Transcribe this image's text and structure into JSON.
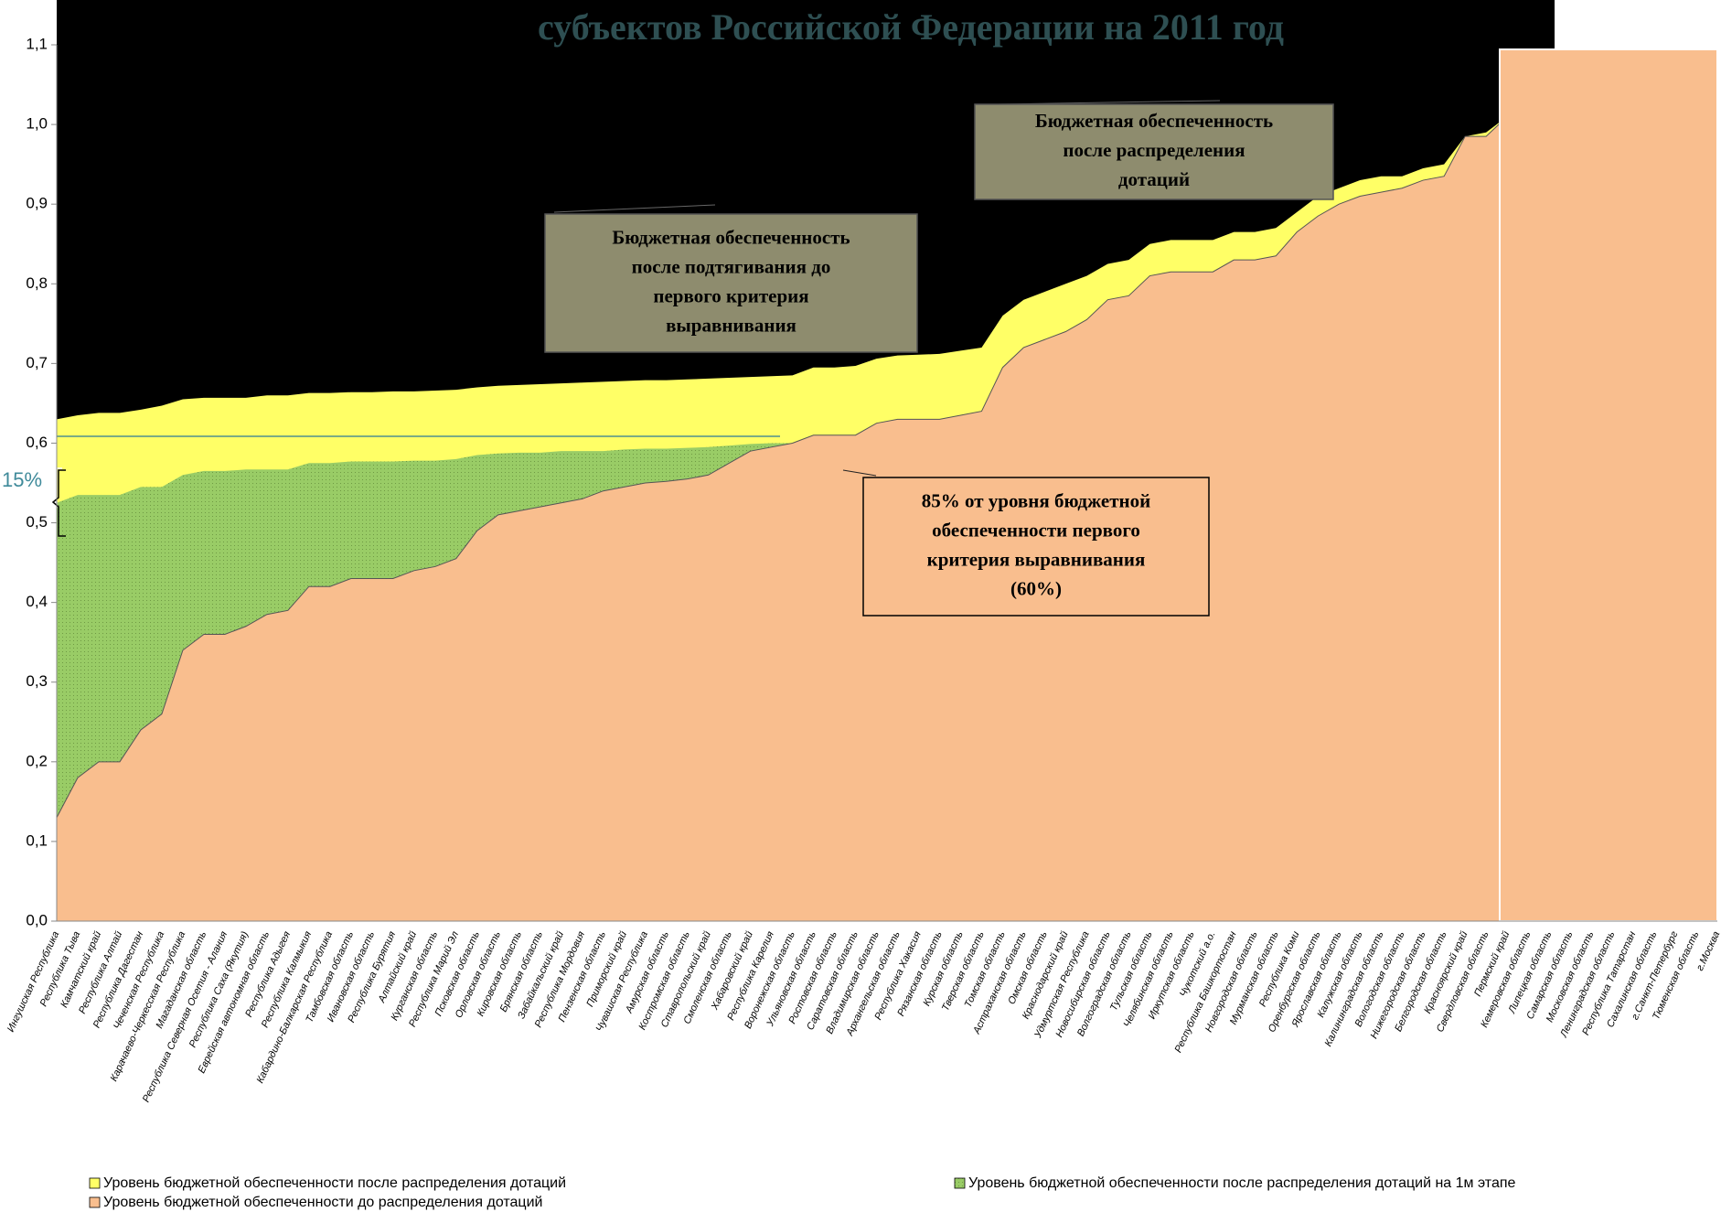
{
  "chart_data": {
    "type": "area",
    "title": "субъектов Российской Федерации на 2011 год",
    "categories": [
      "Ингушская Республика",
      "Республика Тыва",
      "Камчатский край",
      "Республика Алтай",
      "Республика Дагестан",
      "Чеченская Республика",
      "Карачаево-Черкесская Республика",
      "Магаданская область",
      "Республика Северная Осетия - Алания",
      "Республика Саха (Якутия)",
      "Еврейская автономная область",
      "Республика Адыгея",
      "Республика Калмыкия",
      "Кабардино-Балкарская Республика",
      "Тамбовская область",
      "Ивановская область",
      "Республика Бурятия",
      "Алтайский край",
      "Курганская область",
      "Республика Марий Эл",
      "Псковская область",
      "Орловская область",
      "Кировская область",
      "Брянская область",
      "Забайкальский край",
      "Республика Мордовия",
      "Пензенская область",
      "Приморский край",
      "Чувашская Республика",
      "Амурская область",
      "Костромская область",
      "Ставропольский край",
      "Смоленская область",
      "Хабаровский край",
      "Республика Карелия",
      "Воронежская область",
      "Ульяновская область",
      "Ростовская область",
      "Саратовская область",
      "Владимирская область",
      "Архангельская область",
      "Республика Хакасия",
      "Рязанская область",
      "Курская область",
      "Тверская область",
      "Томская область",
      "Астраханская область",
      "Омская область",
      "Краснодарский край",
      "Удмуртская Республика",
      "Новосибирская область",
      "Волгоградская область",
      "Тульская область",
      "Челябинская область",
      "Иркутская область",
      "Чукотский а.о.",
      "Республика Башкортостан",
      "Новгородская область",
      "Мурманская область",
      "Республика Коми",
      "Оренбургская область",
      "Ярославская область",
      "Калужская область",
      "Калининградская область",
      "Вологодская область",
      "Нижегородская область",
      "Белгородская область",
      "Красноярский край",
      "Свердловская область",
      "Пермский край",
      "Кемеровская область",
      "Липецкая область",
      "Самарская область",
      "Московская область",
      "Ленинградская область",
      "Республика Татарстан",
      "Сахалинская область",
      "г.Санкт-Петербург",
      "Тюменская область",
      "г.Москва"
    ],
    "series": [
      {
        "name": "Уровень бюджетной обеспеченности после распределения дотаций",
        "color": "#ffff66",
        "values": [
          0.63,
          0.635,
          0.638,
          0.638,
          0.642,
          0.647,
          0.655,
          0.657,
          0.657,
          0.657,
          0.66,
          0.66,
          0.663,
          0.663,
          0.664,
          0.664,
          0.665,
          0.665,
          0.666,
          0.667,
          0.67,
          0.672,
          0.673,
          0.674,
          0.675,
          0.676,
          0.677,
          0.678,
          0.679,
          0.679,
          0.68,
          0.681,
          0.682,
          0.683,
          0.684,
          0.685,
          0.695,
          0.695,
          0.697,
          0.706,
          0.71,
          0.711,
          0.712,
          0.716,
          0.72,
          0.76,
          0.78,
          0.79,
          0.8,
          0.81,
          0.825,
          0.83,
          0.85,
          0.855,
          0.855,
          0.855,
          0.865,
          0.865,
          0.87,
          0.89,
          0.91,
          0.92,
          0.93,
          0.935,
          0.935,
          0.945,
          0.95,
          0.985,
          0.99,
          1.01,
          null,
          null,
          null,
          null,
          null,
          null,
          null,
          null,
          null,
          null
        ]
      },
      {
        "name": "Уровень бюджетной обеспеченности после распределения дотаций на 1м этапе",
        "color": "#99cc66",
        "values": [
          0.525,
          0.535,
          0.535,
          0.535,
          0.545,
          0.545,
          0.56,
          0.565,
          0.565,
          0.567,
          0.567,
          0.567,
          0.575,
          0.575,
          0.577,
          0.577,
          0.577,
          0.578,
          0.578,
          0.58,
          0.585,
          0.587,
          0.588,
          0.588,
          0.59,
          0.59,
          0.59,
          0.592,
          0.593,
          0.593,
          0.594,
          0.595,
          0.597,
          0.599,
          0.6,
          0.6,
          0.61,
          0.61,
          0.61,
          0.625,
          0.63,
          0.63,
          0.63,
          0.635,
          0.64,
          0.695,
          0.72,
          0.73,
          0.74,
          0.755,
          0.78,
          0.785,
          0.81,
          0.815,
          0.815,
          0.815,
          0.83,
          0.83,
          0.835,
          0.865,
          0.885,
          0.9,
          0.91,
          0.915,
          0.92,
          0.93,
          0.935,
          0.985,
          0.985,
          1.01,
          null,
          null,
          null,
          null,
          null,
          null,
          null,
          null,
          null,
          null
        ]
      },
      {
        "name": "Уровень бюджетной обеспеченности до распределения дотаций",
        "color": "#f9be8e",
        "values": [
          0.13,
          0.18,
          0.2,
          0.2,
          0.24,
          0.26,
          0.34,
          0.36,
          0.36,
          0.37,
          0.385,
          0.39,
          0.42,
          0.42,
          0.43,
          0.43,
          0.43,
          0.44,
          0.445,
          0.455,
          0.49,
          0.51,
          0.515,
          0.52,
          0.525,
          0.53,
          0.54,
          0.545,
          0.55,
          0.552,
          0.555,
          0.56,
          0.575,
          0.59,
          0.595,
          0.6,
          0.61,
          0.61,
          0.61,
          0.625,
          0.63,
          0.63,
          0.63,
          0.635,
          0.64,
          0.695,
          0.72,
          0.73,
          0.74,
          0.755,
          0.78,
          0.785,
          0.81,
          0.815,
          0.815,
          0.815,
          0.83,
          0.83,
          0.835,
          0.865,
          0.885,
          0.9,
          0.91,
          0.915,
          0.92,
          0.93,
          0.935,
          0.985,
          0.985,
          1.01,
          null,
          null,
          null,
          null,
          null,
          null,
          null,
          null,
          null,
          null
        ]
      }
    ],
    "ylim": [
      0,
      1.1
    ],
    "yticks": [
      {
        "value": 0,
        "label": "0,0"
      },
      {
        "value": 0.1,
        "label": "0,1"
      },
      {
        "value": 0.2,
        "label": "0,2"
      },
      {
        "value": 0.3,
        "label": "0,3"
      },
      {
        "value": 0.4,
        "label": "0,4"
      },
      {
        "value": 0.5,
        "label": "0,5"
      },
      {
        "value": 0.6,
        "label": "0,6"
      },
      {
        "value": 0.7,
        "label": "0,7"
      },
      {
        "value": 0.8,
        "label": "0,8"
      },
      {
        "value": 0.9,
        "label": "0,9"
      },
      {
        "value": 1.0,
        "label": "1,0"
      },
      {
        "value": 1.1,
        "label": "1,1"
      }
    ],
    "annotations": [
      {
        "lines": [
          "Бюджетная обеспеченность",
          "после подтягивания до",
          "первого критерия",
          "выравнивания"
        ]
      },
      {
        "lines": [
          "Бюджетная обеспеченность",
          "после распределения",
          "дотаций"
        ]
      },
      {
        "lines": [
          "85% от уровня бюджетной",
          "обеспеченности первого",
          "критерия выравнивания",
          "(60%)"
        ]
      }
    ],
    "bracket_label": "15%"
  }
}
